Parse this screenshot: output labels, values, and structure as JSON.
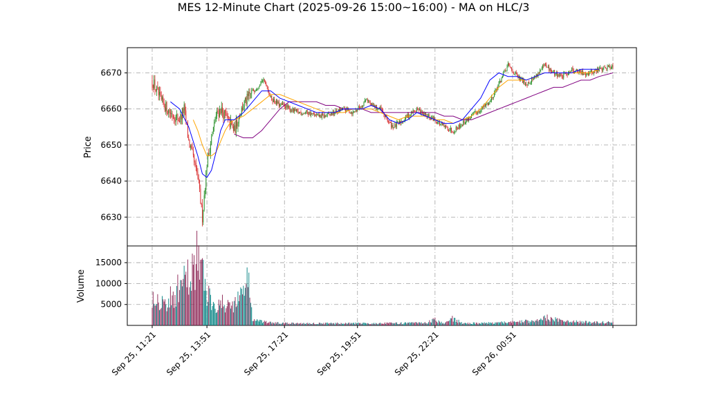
{
  "chart_data": {
    "type": "candlestick",
    "title": "MES 12-Minute Chart (2025-09-26 15:00~16:00) - MA on HLC/3",
    "xlabel": "",
    "price_panel": {
      "ylabel": "Price",
      "ylim": [
        6622,
        6677
      ],
      "yticks": [
        6630,
        6640,
        6650,
        6660,
        6670
      ]
    },
    "volume_panel": {
      "ylabel": "Volume",
      "ylim": [
        0,
        19000
      ],
      "yticks": [
        5000,
        10000,
        15000
      ]
    },
    "x_tick_labels": [
      "Sep 25, 11:21",
      "Sep 25, 13:51",
      "Sep 25, 17:21",
      "Sep 25, 19:51",
      "Sep 25, 22:21",
      "Sep 26, 00:51"
    ],
    "x_tick_bar_index": [
      0,
      12,
      29,
      45,
      62,
      79
    ],
    "bar_count": 102,
    "grid": true,
    "colors": {
      "up": "#228b22",
      "down": "#d62728",
      "volume_up": "#008080",
      "volume_down": "#8b2252",
      "ma_fast": "#0000ff",
      "ma_mid": "#ffa500",
      "ma_slow": "#800080",
      "grid": "#a0a0a0"
    },
    "anchor_closes": [
      [
        0,
        6668
      ],
      [
        2,
        6662
      ],
      [
        4,
        6659
      ],
      [
        6,
        6657
      ],
      [
        7,
        6660
      ],
      [
        8,
        6651
      ],
      [
        9,
        6646
      ],
      [
        10,
        6641
      ],
      [
        11,
        6630
      ],
      [
        12,
        6645
      ],
      [
        13,
        6652
      ],
      [
        14,
        6658
      ],
      [
        15,
        6660
      ],
      [
        16,
        6658
      ],
      [
        17,
        6656
      ],
      [
        18,
        6654
      ],
      [
        19,
        6658
      ],
      [
        20,
        6661
      ],
      [
        21,
        6663
      ],
      [
        22,
        6665
      ],
      [
        23,
        6666
      ],
      [
        24,
        6668
      ],
      [
        25,
        6667
      ],
      [
        26,
        6663
      ],
      [
        27,
        6662
      ],
      [
        28,
        6661
      ],
      [
        29,
        6661
      ],
      [
        30,
        6660
      ],
      [
        32,
        6659
      ],
      [
        34,
        6659
      ],
      [
        36,
        6658
      ],
      [
        38,
        6658
      ],
      [
        40,
        6659
      ],
      [
        42,
        6660
      ],
      [
        44,
        6659
      ],
      [
        46,
        6661
      ],
      [
        47,
        6663
      ],
      [
        48,
        6661
      ],
      [
        50,
        6660
      ],
      [
        52,
        6656
      ],
      [
        53,
        6655
      ],
      [
        54,
        6656
      ],
      [
        56,
        6658
      ],
      [
        58,
        6660
      ],
      [
        60,
        6658
      ],
      [
        62,
        6657
      ],
      [
        64,
        6655
      ],
      [
        66,
        6654
      ],
      [
        68,
        6656
      ],
      [
        70,
        6658
      ],
      [
        72,
        6660
      ],
      [
        74,
        6662
      ],
      [
        76,
        6667
      ],
      [
        78,
        6672
      ],
      [
        80,
        6669
      ],
      [
        82,
        6667
      ],
      [
        84,
        6669
      ],
      [
        86,
        6672
      ],
      [
        88,
        6670
      ],
      [
        90,
        6669
      ],
      [
        92,
        6671
      ],
      [
        94,
        6670
      ],
      [
        96,
        6670
      ],
      [
        98,
        6671
      ],
      [
        101,
        6672
      ]
    ],
    "ma_fast_points": [
      [
        4,
        6662
      ],
      [
        6,
        6660
      ],
      [
        8,
        6655
      ],
      [
        10,
        6647
      ],
      [
        11,
        6642
      ],
      [
        12,
        6641
      ],
      [
        13,
        6643
      ],
      [
        14,
        6648
      ],
      [
        15,
        6654
      ],
      [
        16,
        6657
      ],
      [
        17,
        6657
      ],
      [
        18,
        6657
      ],
      [
        20,
        6659
      ],
      [
        22,
        6662
      ],
      [
        24,
        6665
      ],
      [
        26,
        6665
      ],
      [
        28,
        6663
      ],
      [
        30,
        6662
      ],
      [
        32,
        6661
      ],
      [
        34,
        6660
      ],
      [
        36,
        6659
      ],
      [
        38,
        6659
      ],
      [
        40,
        6659
      ],
      [
        42,
        6660
      ],
      [
        44,
        6660
      ],
      [
        46,
        6660
      ],
      [
        48,
        6661
      ],
      [
        50,
        6660
      ],
      [
        52,
        6657
      ],
      [
        54,
        6656
      ],
      [
        56,
        6657
      ],
      [
        58,
        6659
      ],
      [
        60,
        6658
      ],
      [
        62,
        6657
      ],
      [
        64,
        6656
      ],
      [
        66,
        6656
      ],
      [
        68,
        6657
      ],
      [
        70,
        6660
      ],
      [
        72,
        6663
      ],
      [
        74,
        6668
      ],
      [
        76,
        6670
      ],
      [
        78,
        6669
      ],
      [
        80,
        6669
      ],
      [
        82,
        6668
      ],
      [
        84,
        6669
      ],
      [
        86,
        6670
      ],
      [
        88,
        6670
      ],
      [
        90,
        6670
      ],
      [
        92,
        6670
      ],
      [
        94,
        6671
      ],
      [
        96,
        6671
      ],
      [
        98,
        6671
      ]
    ],
    "ma_mid_points": [
      [
        9,
        6657
      ],
      [
        10,
        6654
      ],
      [
        11,
        6650
      ],
      [
        12,
        6647
      ],
      [
        13,
        6647
      ],
      [
        14,
        6648
      ],
      [
        15,
        6651
      ],
      [
        16,
        6654
      ],
      [
        17,
        6656
      ],
      [
        18,
        6657
      ],
      [
        20,
        6658
      ],
      [
        22,
        6660
      ],
      [
        24,
        6662
      ],
      [
        26,
        6664
      ],
      [
        28,
        6664
      ],
      [
        30,
        6663
      ],
      [
        32,
        6662
      ],
      [
        34,
        6661
      ],
      [
        36,
        6660
      ],
      [
        38,
        6659
      ],
      [
        40,
        6659
      ],
      [
        42,
        6659
      ],
      [
        44,
        6660
      ],
      [
        46,
        6660
      ],
      [
        48,
        6660
      ],
      [
        50,
        6659
      ],
      [
        52,
        6658
      ],
      [
        54,
        6657
      ],
      [
        56,
        6658
      ],
      [
        58,
        6658
      ],
      [
        60,
        6658
      ],
      [
        62,
        6657
      ],
      [
        64,
        6657
      ],
      [
        66,
        6656
      ],
      [
        68,
        6657
      ],
      [
        70,
        6658
      ],
      [
        72,
        6660
      ],
      [
        74,
        6663
      ],
      [
        76,
        6666
      ],
      [
        78,
        6668
      ],
      [
        80,
        6668
      ],
      [
        82,
        6668
      ],
      [
        84,
        6669
      ],
      [
        86,
        6670
      ],
      [
        88,
        6670
      ],
      [
        90,
        6670
      ],
      [
        92,
        6670
      ],
      [
        94,
        6670
      ],
      [
        96,
        6670
      ],
      [
        98,
        6671
      ]
    ],
    "ma_slow_points": [
      [
        18,
        6653
      ],
      [
        20,
        6652
      ],
      [
        22,
        6652
      ],
      [
        24,
        6654
      ],
      [
        26,
        6657
      ],
      [
        28,
        6660
      ],
      [
        30,
        6662
      ],
      [
        32,
        6662
      ],
      [
        34,
        6662
      ],
      [
        36,
        6662
      ],
      [
        38,
        6661
      ],
      [
        40,
        6661
      ],
      [
        42,
        6660
      ],
      [
        44,
        6660
      ],
      [
        46,
        6660
      ],
      [
        48,
        6659
      ],
      [
        50,
        6659
      ],
      [
        52,
        6659
      ],
      [
        54,
        6659
      ],
      [
        56,
        6659
      ],
      [
        58,
        6659
      ],
      [
        60,
        6659
      ],
      [
        62,
        6659
      ],
      [
        64,
        6658
      ],
      [
        66,
        6658
      ],
      [
        68,
        6657
      ],
      [
        70,
        6657
      ],
      [
        72,
        6658
      ],
      [
        74,
        6659
      ],
      [
        76,
        6660
      ],
      [
        78,
        6661
      ],
      [
        80,
        6662
      ],
      [
        82,
        6663
      ],
      [
        84,
        6664
      ],
      [
        86,
        6665
      ],
      [
        88,
        6666
      ],
      [
        90,
        6666
      ],
      [
        92,
        6667
      ],
      [
        94,
        6668
      ],
      [
        96,
        6668
      ],
      [
        98,
        6669
      ],
      [
        101,
        6670
      ]
    ],
    "volume_anchors": [
      [
        0,
        8000
      ],
      [
        3,
        5500
      ],
      [
        5,
        8000
      ],
      [
        8,
        12000
      ],
      [
        10,
        18000
      ],
      [
        12,
        8000
      ],
      [
        14,
        5500
      ],
      [
        17,
        5000
      ],
      [
        19,
        6500
      ],
      [
        21,
        12500
      ],
      [
        22,
        1500
      ],
      [
        24,
        900
      ],
      [
        27,
        600
      ],
      [
        30,
        500
      ],
      [
        40,
        500
      ],
      [
        50,
        500
      ],
      [
        60,
        600
      ],
      [
        62,
        1400
      ],
      [
        64,
        500
      ],
      [
        66,
        1800
      ],
      [
        68,
        500
      ],
      [
        75,
        600
      ],
      [
        80,
        900
      ],
      [
        85,
        1200
      ],
      [
        86,
        2000
      ],
      [
        90,
        1000
      ],
      [
        95,
        800
      ],
      [
        101,
        700
      ]
    ]
  }
}
